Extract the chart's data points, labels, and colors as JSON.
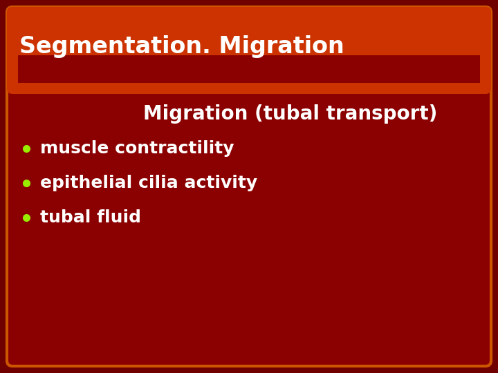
{
  "title": "Segmentation. Migration",
  "subtitle": "Migration (tubal transport)",
  "bullet_points": [
    "muscle contractility",
    "epithelial cilia activity",
    "tubal fluid"
  ],
  "bg_color": "#8B0000",
  "outer_bg_color": "#700000",
  "header_color": "#CC3300",
  "header_text_color": "#FFFFFF",
  "body_text_color": "#FFFFFF",
  "subtitle_text_color": "#FFFFFF",
  "bullet_color": "#99EE00",
  "border_color": "#CC5500",
  "title_fontsize": 24,
  "subtitle_fontsize": 20,
  "bullet_fontsize": 18
}
